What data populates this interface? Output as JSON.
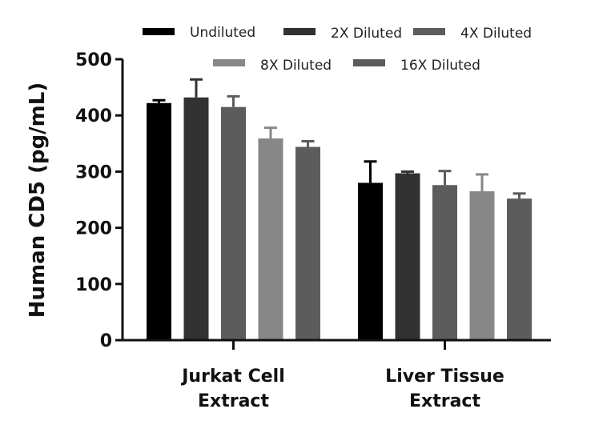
{
  "chart_data": {
    "type": "bar",
    "title": "",
    "xlabel": "",
    "ylabel": "Human CD5 (pg/mL)",
    "ylim": [
      0,
      500
    ],
    "yticks": [
      "0",
      "100",
      "200",
      "300",
      "400",
      "500"
    ],
    "grid": false,
    "legend_position": "top",
    "categories": [
      {
        "line1": "Jurkat Cell",
        "line2": "Extract"
      },
      {
        "line1": "Liver Tissue",
        "line2": "Extract"
      }
    ],
    "series": [
      {
        "name": "Undiluted",
        "color": "#000000",
        "values": [
          422,
          280
        ],
        "errors": [
          5,
          38
        ]
      },
      {
        "name": "2X Diluted",
        "color": "#323232",
        "values": [
          432,
          297
        ],
        "errors": [
          32,
          3
        ]
      },
      {
        "name": "4X Diluted",
        "color": "#5c5c5c",
        "values": [
          415,
          276
        ],
        "errors": [
          19,
          25
        ]
      },
      {
        "name": "8X Diluted",
        "color": "#878787",
        "values": [
          359,
          265
        ],
        "errors": [
          19,
          30
        ]
      },
      {
        "name": "16X Diluted",
        "color": "#5c5c5c",
        "values": [
          344,
          252
        ],
        "errors": [
          10,
          9
        ]
      }
    ]
  }
}
